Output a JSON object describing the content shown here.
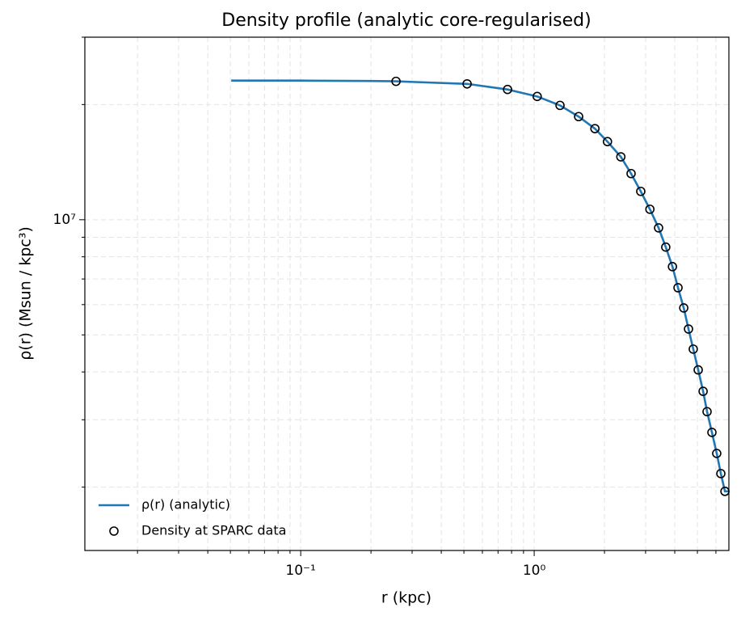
{
  "chart_data": {
    "type": "line",
    "title": "Density profile (analytic core-regularised)",
    "x_label": "r (kpc)",
    "y_label": "ρ(r) (Msun / kpc³)",
    "xlog": true,
    "ylog": true,
    "grid": true,
    "legend": "lower left",
    "xlim": [
      0.0119,
      6.82
    ],
    "ylim": [
      1366000,
      30000000
    ],
    "xticks": [
      {
        "value": 0.1,
        "label": "10⁻¹"
      },
      {
        "value": 1,
        "label": "10⁰"
      }
    ],
    "xminorticks": [
      0.02,
      0.03,
      0.04,
      0.05,
      0.06,
      0.07,
      0.08,
      0.09,
      0.2,
      0.3,
      0.4,
      0.5,
      0.6,
      0.7,
      0.8,
      0.9,
      2,
      3,
      4,
      5,
      6
    ],
    "yticks": [
      {
        "value": 10000000,
        "label": "10⁷"
      }
    ],
    "yminorticks": [
      2000000,
      3000000,
      4000000,
      5000000,
      6000000,
      7000000,
      8000000,
      9000000,
      20000000,
      30000000
    ],
    "series": [
      {
        "name": "ρ(r) (analytic)",
        "type": "line",
        "color": "#1f77b4",
        "x": [
          0.0504,
          0.1,
          0.2,
          0.256,
          0.516,
          0.769,
          1.03,
          1.29,
          1.55,
          1.82,
          2.06,
          2.35,
          2.6,
          2.86,
          3.13,
          3.41,
          3.66,
          3.91,
          4.13,
          4.37,
          4.58,
          4.8,
          5.04,
          5.29,
          5.5,
          5.77,
          6.05,
          6.3,
          6.56,
          6.82
        ],
        "values": [
          23100000,
          23100000,
          23050000,
          23000000,
          22650000,
          21900000,
          21000000,
          19900000,
          18600000,
          17300000,
          16000000,
          14600000,
          13200000,
          11860000,
          10650000,
          9520000,
          8480000,
          7540000,
          6640000,
          5880000,
          5180000,
          4590000,
          4050000,
          3560000,
          3150000,
          2780000,
          2450000,
          2170000,
          1950000,
          1950000
        ]
      },
      {
        "name": "Density at SPARC data",
        "type": "scatter",
        "color": "#000000",
        "x": [
          0.256,
          0.516,
          0.769,
          1.03,
          1.29,
          1.55,
          1.82,
          2.06,
          2.35,
          2.6,
          2.86,
          3.13,
          3.41,
          3.66,
          3.91,
          4.13,
          4.37,
          4.58,
          4.8,
          5.04,
          5.29,
          5.5,
          5.77,
          6.05,
          6.3,
          6.56
        ],
        "values": [
          23000000,
          22650000,
          21900000,
          21000000,
          19900000,
          18600000,
          17300000,
          16000000,
          14600000,
          13200000,
          11860000,
          10650000,
          9520000,
          8480000,
          7540000,
          6640000,
          5880000,
          5180000,
          4590000,
          4050000,
          3560000,
          3150000,
          2780000,
          2450000,
          2170000,
          1950000
        ]
      }
    ]
  }
}
